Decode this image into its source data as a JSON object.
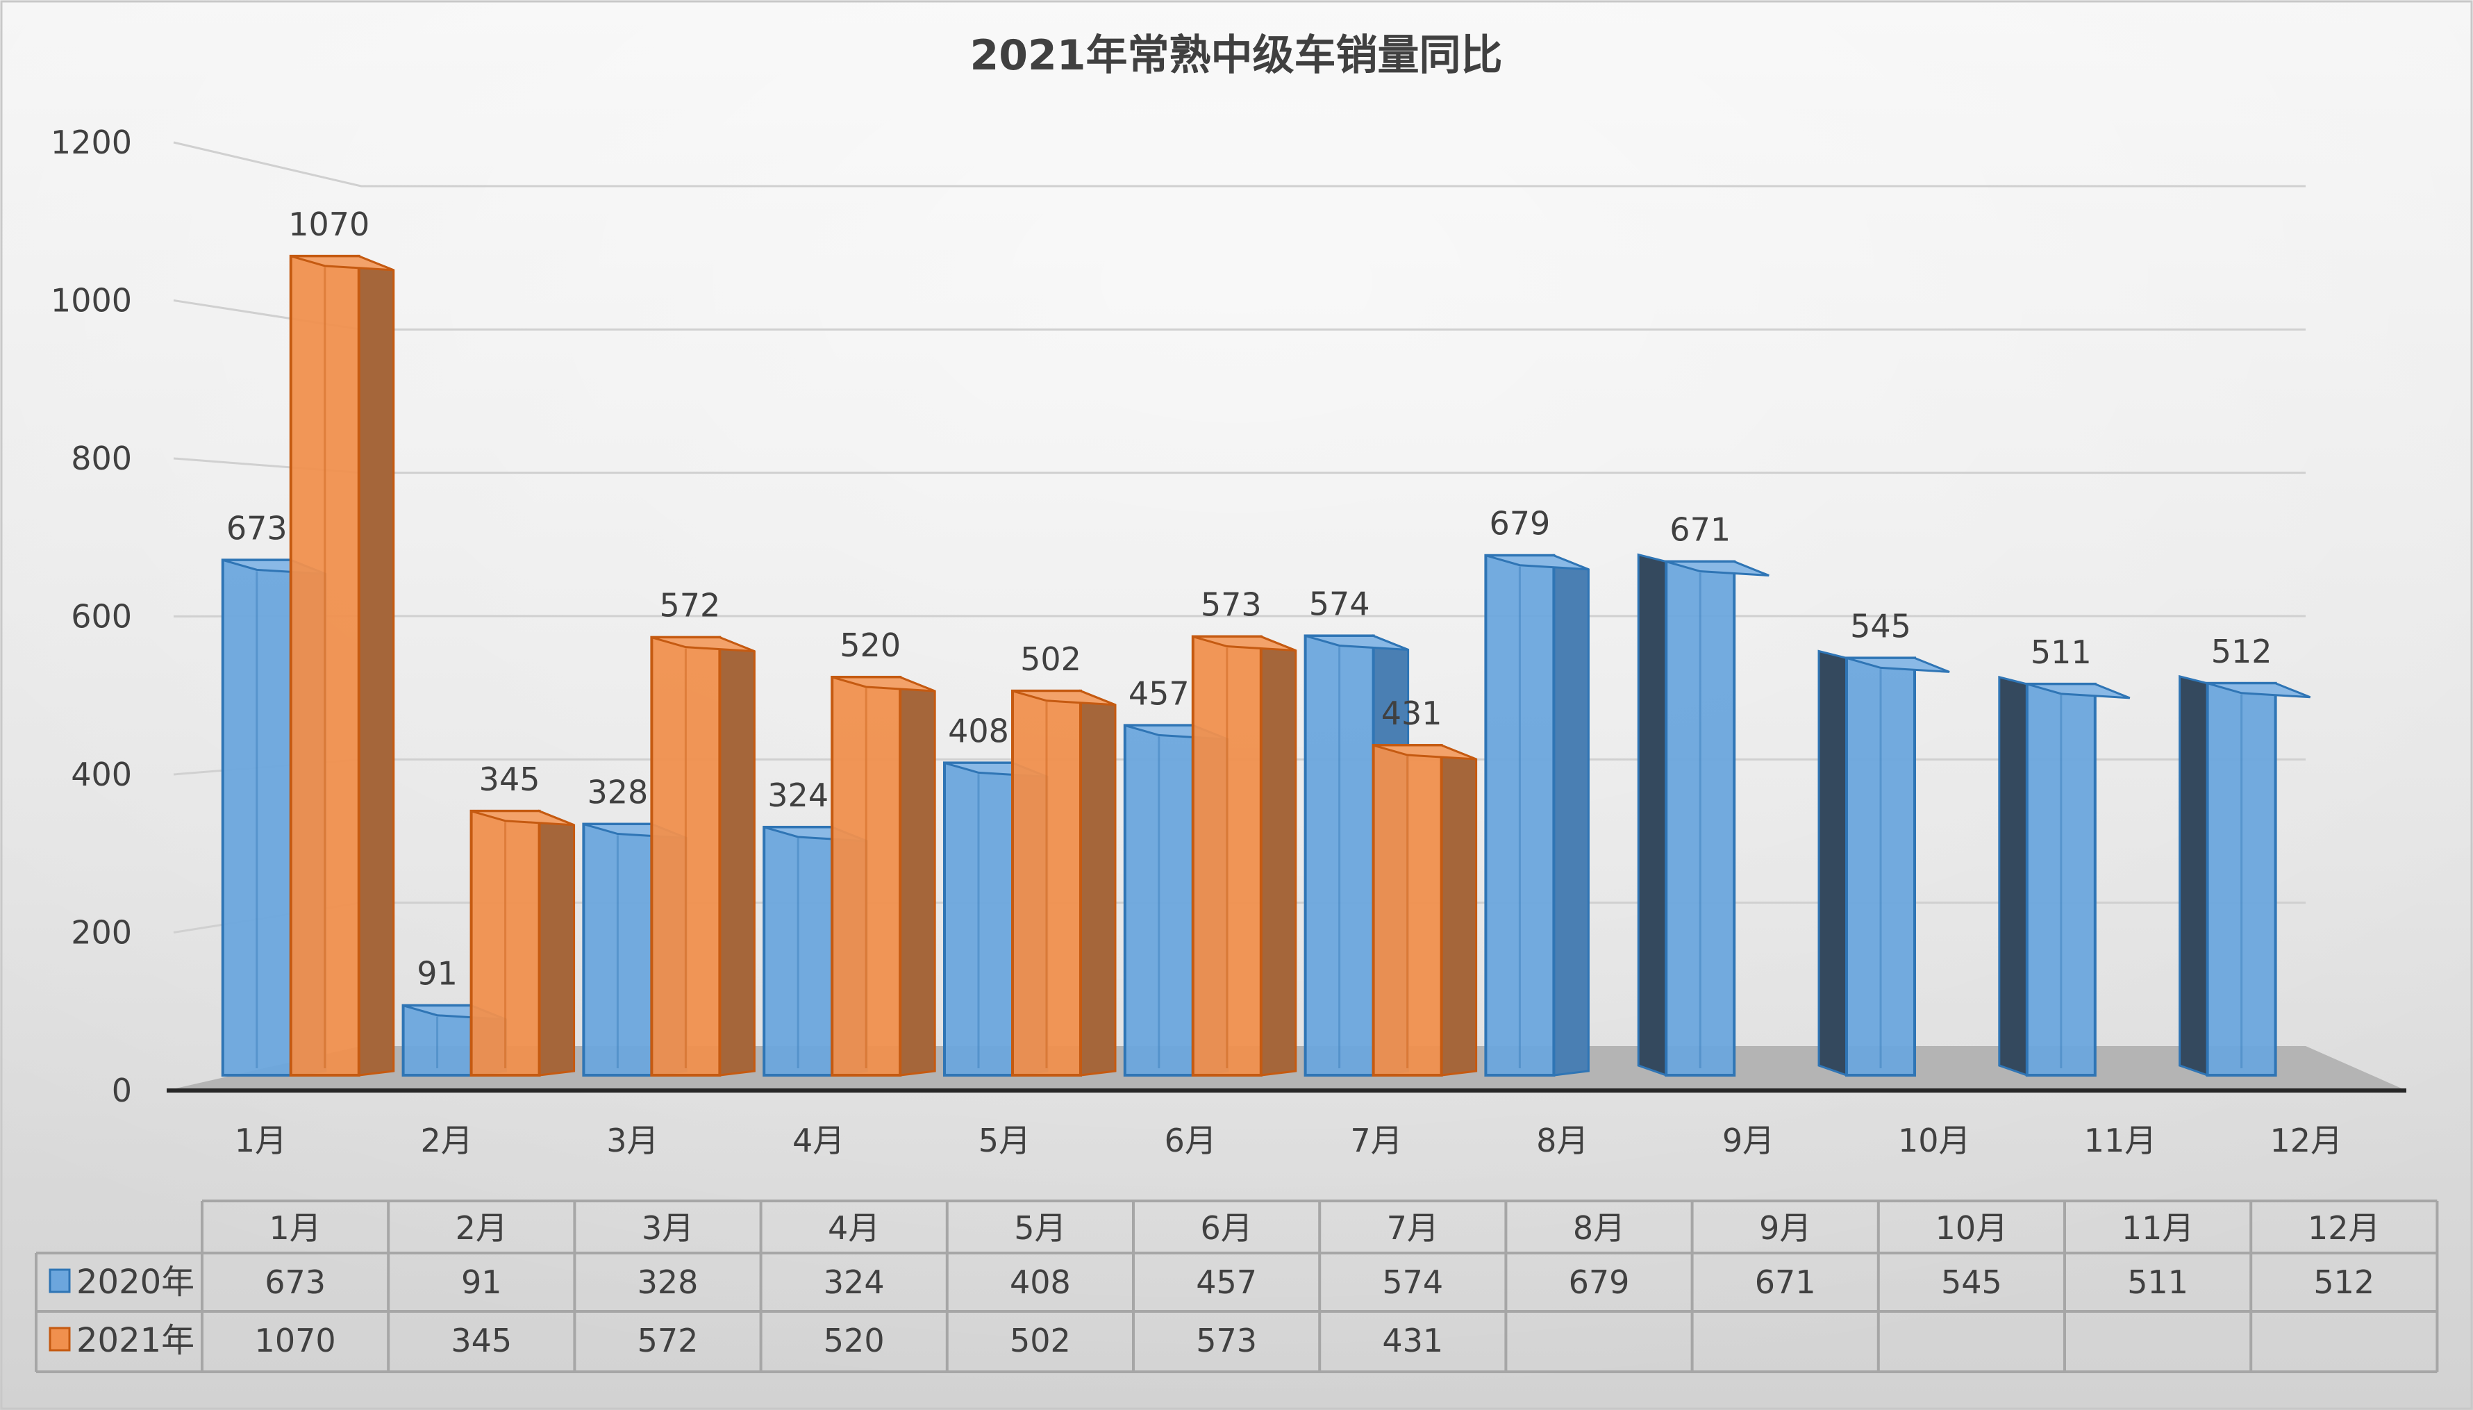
{
  "chart_data": {
    "type": "bar",
    "title": "2021年常熟中级车销量同比",
    "xlabel": "",
    "ylabel": "",
    "ylim": [
      0,
      1200
    ],
    "yticks": [
      0,
      200,
      400,
      600,
      800,
      1000,
      1200
    ],
    "grid": true,
    "legend": "data-table-bottom",
    "categories": [
      "1月",
      "2月",
      "3月",
      "4月",
      "5月",
      "6月",
      "7月",
      "8月",
      "9月",
      "10月",
      "11月",
      "12月"
    ],
    "series": [
      {
        "name": "2020年",
        "color": "#5B9BD5",
        "values": [
          673,
          91,
          328,
          324,
          408,
          457,
          574,
          679,
          671,
          545,
          511,
          512
        ]
      },
      {
        "name": "2021年",
        "color": "#ED7D31",
        "values": [
          1070,
          345,
          572,
          520,
          502,
          573,
          431,
          null,
          null,
          null,
          null,
          null
        ]
      }
    ]
  }
}
